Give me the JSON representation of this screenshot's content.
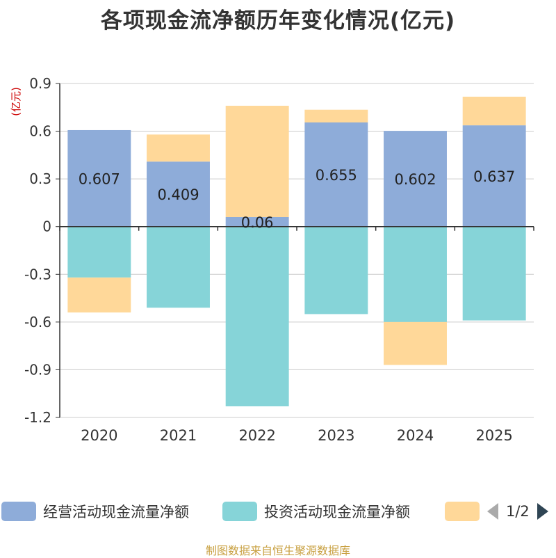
{
  "title": "各项现金流净额历年变化情况(亿元)",
  "source": "制图数据来自恒生聚源数据库",
  "colors": {
    "operating": "#8eacd9",
    "investing": "#86d4d8",
    "financing": "#ffd899",
    "axis": "#333333",
    "grid": "#cccccc",
    "unit_label": "#cc0000",
    "pager_active": "#2f4554",
    "pager_inactive": "#aaaaaa",
    "source_text": "#c8a040"
  },
  "legend": {
    "items": [
      {
        "label": "经营活动现金流量净额",
        "color": "#8eacd9"
      },
      {
        "label": "投资活动现金流量净额",
        "color": "#86d4d8"
      },
      {
        "label": "",
        "color": "#ffd899"
      }
    ],
    "page_indicator": "1/2",
    "prev_icon": "triangle-left-icon",
    "next_icon": "triangle-right-icon"
  },
  "chart_data": {
    "type": "bar",
    "stacked": true,
    "unit_label": "(亿元)",
    "categories": [
      "2020",
      "2021",
      "2022",
      "2023",
      "2024",
      "2025"
    ],
    "ylim": [
      -1.2,
      0.9
    ],
    "yticks": [
      0.9,
      0.6,
      0.3,
      0,
      -0.3,
      -0.6,
      -0.9,
      -1.2
    ],
    "ytick_labels": [
      "0.9",
      "0.6",
      "0.3",
      "0",
      "-0.3",
      "-0.6",
      "-0.9",
      "-1.2"
    ],
    "grid": true,
    "legend_position": "bottom",
    "series": [
      {
        "name": "经营活动现金流量净额",
        "color": "#8eacd9",
        "values": [
          0.607,
          0.409,
          0.06,
          0.655,
          0.602,
          0.637
        ],
        "labels": [
          "0.607",
          "0.409",
          "0.06",
          "0.655",
          "0.602",
          "0.637"
        ]
      },
      {
        "name": "投资活动现金流量净额",
        "color": "#86d4d8",
        "values": [
          -0.32,
          -0.51,
          -1.13,
          -0.55,
          -0.6,
          -0.59
        ]
      },
      {
        "color": "#ffd899",
        "values": [
          -0.22,
          0.17,
          0.7,
          0.08,
          -0.27,
          0.18
        ]
      }
    ]
  }
}
